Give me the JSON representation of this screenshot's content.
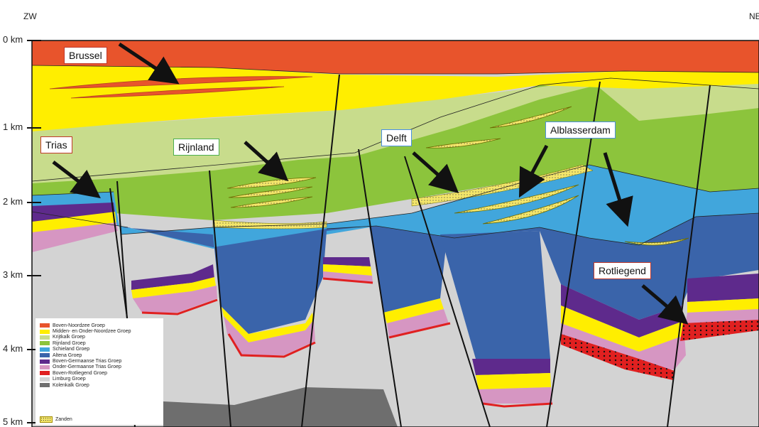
{
  "direction": {
    "left": "ZW",
    "right": "NE"
  },
  "depth_axis": [
    "0 km",
    "1 km",
    "2 km",
    "3 km",
    "4 km",
    "5 km"
  ],
  "callouts": {
    "brussel": "Brussel",
    "trias": "Trias",
    "rijnland": "Rijnland",
    "delft": "Delft",
    "alblasserdam": "Alblasserdam",
    "rotliegend": "Rotliegend"
  },
  "colors": {
    "boven_noordzee": "#e8542c",
    "midden_onder_noordzee": "#ffee00",
    "krijtkalk": "#c8dc8c",
    "rijnland": "#8cc43c",
    "schieland": "#41a6dc",
    "altena": "#3a64aa",
    "boven_germaanse_trias": "#5e2a8c",
    "onder_germaanse_trias": "#d696c2",
    "boven_rotliegend": "#e02020",
    "limburg": "#d3d3d3",
    "kolenkalk": "#6e6e6e",
    "zanden": "#f4e66a"
  },
  "legend": {
    "items": [
      {
        "label": "Boven-Noordzee Groep",
        "color": "#e8542c"
      },
      {
        "label": "Midden- en Onder-Noordzee Groep",
        "color": "#ffee00"
      },
      {
        "label": "Krijtkalk Groep",
        "color": "#c8dc8c"
      },
      {
        "label": "Rijnland Groep",
        "color": "#8cc43c"
      },
      {
        "label": "Schieland Groep",
        "color": "#41a6dc"
      },
      {
        "label": "Altena Groep",
        "color": "#3a64aa"
      },
      {
        "label": "Boven-Germaanse Trias Groep",
        "color": "#5e2a8c"
      },
      {
        "label": "Onder-Germaanse Trias Groep",
        "color": "#d696c2"
      },
      {
        "label": "Boven-Rotliegend Groep",
        "color": "#e02020"
      },
      {
        "label": "Limburg Groep",
        "color": "#d3d3d3"
      },
      {
        "label": "Kolenkalk Groep",
        "color": "#6e6e6e"
      }
    ],
    "sand_label": "Zanden"
  }
}
